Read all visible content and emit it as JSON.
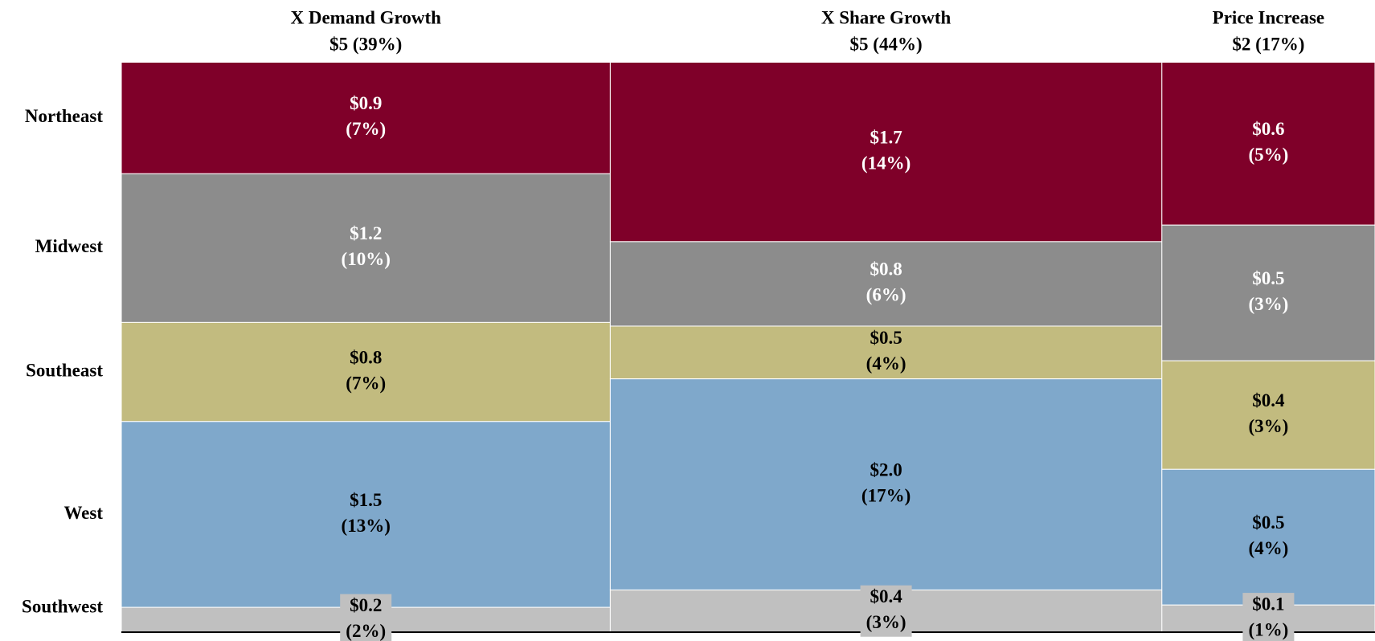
{
  "chart_data": {
    "type": "mekko",
    "categories": [
      "X Demand Growth",
      "X Share Growth",
      "Price Increase"
    ],
    "widths": [
      39,
      44,
      17
    ],
    "width_labels": [
      "$5 (39%)",
      "$5 (44%)",
      "$2 (17%)"
    ],
    "series": [
      {
        "name": "Northeast",
        "color": "#7f0029",
        "label_color": "#ffffff",
        "values": [
          0.9,
          1.7,
          0.6
        ],
        "value_labels": [
          "$0.9",
          "$1.7",
          "$0.6"
        ],
        "shares": [
          7,
          14,
          5
        ],
        "share_labels": [
          "(7%)",
          "(14%)",
          "(5%)"
        ]
      },
      {
        "name": "Midwest",
        "color": "#8c8c8c",
        "label_color": "#ffffff",
        "values": [
          1.2,
          0.8,
          0.5
        ],
        "value_labels": [
          "$1.2",
          "$0.8",
          "$0.5"
        ],
        "shares": [
          10,
          6,
          3
        ],
        "share_labels": [
          "(10%)",
          "(6%)",
          "(3%)"
        ]
      },
      {
        "name": "Southeast",
        "color": "#c2bb7f",
        "label_color": "#000000",
        "values": [
          0.8,
          0.5,
          0.4
        ],
        "value_labels": [
          "$0.8",
          "$0.5",
          "$0.4"
        ],
        "shares": [
          7,
          4,
          3
        ],
        "share_labels": [
          "(7%)",
          "(4%)",
          "(3%)"
        ]
      },
      {
        "name": "West",
        "color": "#7fa8cb",
        "label_color": "#000000",
        "values": [
          1.5,
          2.0,
          0.5
        ],
        "value_labels": [
          "$1.5",
          "$2.0",
          "$0.5"
        ],
        "shares": [
          13,
          17,
          4
        ],
        "share_labels": [
          "(13%)",
          "(17%)",
          "(4%)"
        ]
      },
      {
        "name": "Southwest",
        "color": "#c0c0c0",
        "label_color": "#000000",
        "label_background": "#c0c0c0",
        "values": [
          0.2,
          0.4,
          0.1
        ],
        "value_labels": [
          "$0.2",
          "$0.4",
          "$0.1"
        ],
        "shares": [
          2,
          3,
          1
        ],
        "share_labels": [
          "(2%)",
          "(3%)",
          "(1%)"
        ]
      }
    ]
  }
}
